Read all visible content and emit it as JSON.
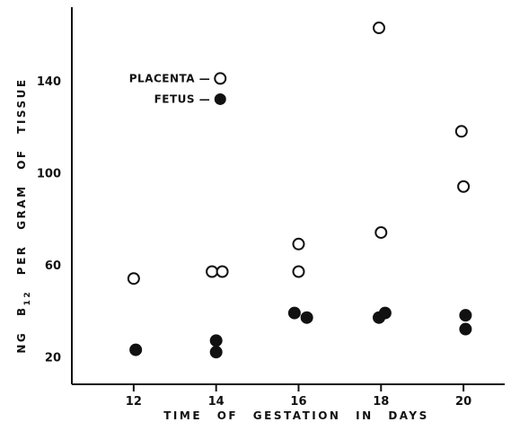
{
  "chart_data": {
    "type": "scatter",
    "xlabel": "TIME OF GESTATION IN DAYS",
    "ylabel_parts": [
      "NG B",
      "12",
      " PER GRAM OF TISSUE"
    ],
    "x_ticks": [
      12,
      14,
      16,
      18,
      20
    ],
    "y_ticks": [
      20,
      60,
      100,
      140
    ],
    "xlim": [
      10.5,
      21
    ],
    "ylim": [
      8,
      172
    ],
    "grid": false,
    "legend_position": "top-left",
    "series": [
      {
        "name": "PLACENTA",
        "marker": "open-circle",
        "legend_label": "PLACENTA —",
        "points": [
          {
            "x": 12,
            "y": 54
          },
          {
            "x": 13.9,
            "y": 57
          },
          {
            "x": 14.15,
            "y": 57
          },
          {
            "x": 16,
            "y": 69
          },
          {
            "x": 16,
            "y": 57
          },
          {
            "x": 17.95,
            "y": 163
          },
          {
            "x": 18,
            "y": 74
          },
          {
            "x": 19.95,
            "y": 118
          },
          {
            "x": 20,
            "y": 94
          }
        ]
      },
      {
        "name": "FETUS",
        "marker": "filled-circle",
        "legend_label": "FETUS —",
        "points": [
          {
            "x": 12.05,
            "y": 23
          },
          {
            "x": 14,
            "y": 27
          },
          {
            "x": 14,
            "y": 22
          },
          {
            "x": 15.9,
            "y": 39
          },
          {
            "x": 16.2,
            "y": 37
          },
          {
            "x": 17.95,
            "y": 37
          },
          {
            "x": 18.1,
            "y": 39
          },
          {
            "x": 20.05,
            "y": 38
          },
          {
            "x": 20.05,
            "y": 32
          }
        ]
      }
    ],
    "legend_markers": [
      {
        "series": "PLACENTA",
        "x": 14.1,
        "y": 141
      },
      {
        "series": "FETUS",
        "x": 14.1,
        "y": 132
      }
    ]
  }
}
